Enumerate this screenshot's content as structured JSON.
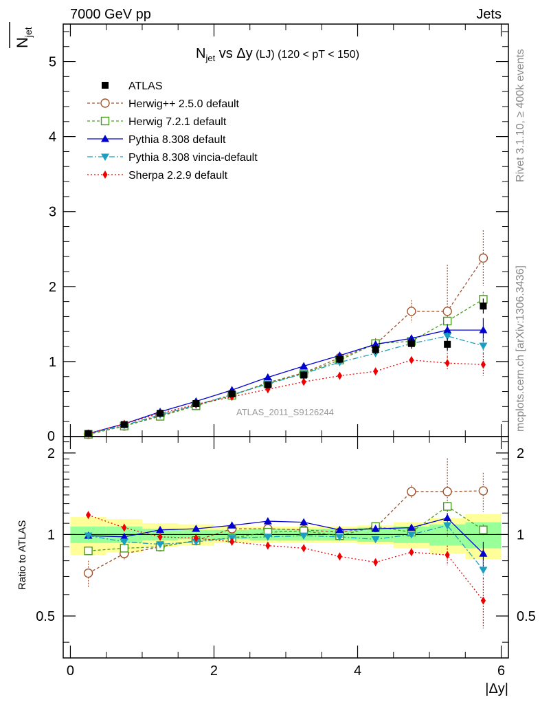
{
  "header": {
    "left": "7000 GeV pp",
    "right": "Jets"
  },
  "side_labels": {
    "rivet": "Rivet 3.1.10, ≥ 400k events",
    "mcplots": "mcplots.cern.ch [arXiv:1306.3436]"
  },
  "watermark": "ATLAS_2011_S9126244",
  "title": {
    "main": "N",
    "sub": "jet",
    "vs": " vs Δy",
    "small": " (LJ)",
    "range": " (120 < pT < 150)"
  },
  "axis": {
    "ylabel_main": "N",
    "ylabel_sub": "jet",
    "ylabel_ratio": "Ratio to ATLAS",
    "xlabel": "|Δy|"
  },
  "chart_data": {
    "type": "scatter",
    "x": [
      0.25,
      0.75,
      1.25,
      1.75,
      2.25,
      2.75,
      3.25,
      3.75,
      4.25,
      4.75,
      5.25,
      5.75
    ],
    "xlim": [
      -0.1,
      6.1
    ],
    "main": {
      "ylim": [
        0,
        5.5
      ],
      "yticks": [
        1,
        2,
        3,
        4,
        5
      ],
      "ytick_labels": [
        "1",
        "2",
        "3",
        "4",
        "5"
      ],
      "ytick_zero_label": "0"
    },
    "ratio": {
      "ylim": [
        0.35,
        2.3
      ],
      "yticks": [
        0.5,
        1,
        2
      ],
      "ytick_labels": [
        "0.5",
        "1",
        "2"
      ]
    },
    "xticks": [
      0,
      2,
      4,
      6
    ],
    "xtick_labels": [
      "0",
      "2",
      "4",
      "6"
    ],
    "data": {
      "name": "ATLAS",
      "values": [
        0.04,
        0.16,
        0.31,
        0.44,
        0.57,
        0.69,
        0.82,
        1.03,
        1.16,
        1.24,
        1.23,
        1.74
      ],
      "errors": [
        0.01,
        0.02,
        0.02,
        0.03,
        0.03,
        0.04,
        0.05,
        0.05,
        0.06,
        0.07,
        0.08,
        0.1
      ]
    },
    "ratio_band": {
      "green": [
        0.07,
        0.07,
        0.05,
        0.04,
        0.04,
        0.05,
        0.05,
        0.05,
        0.06,
        0.07,
        0.09,
        0.11
      ],
      "yellow": [
        0.16,
        0.14,
        0.1,
        0.09,
        0.07,
        0.07,
        0.07,
        0.07,
        0.08,
        0.11,
        0.15,
        0.19
      ]
    },
    "series": [
      {
        "name": "Herwig++ 2.5.0 default",
        "color": "#a0522d",
        "marker": "circle-open",
        "dash": "4,3",
        "values": [
          0.03,
          0.14,
          0.28,
          0.42,
          0.55,
          0.72,
          0.85,
          1.05,
          1.23,
          1.67,
          1.67,
          2.38
        ],
        "errors": [
          0.0,
          0.01,
          0.01,
          0.02,
          0.03,
          0.04,
          0.05,
          0.06,
          0.08,
          0.15,
          0.62,
          0.37
        ],
        "ratio": [
          0.72,
          0.85,
          0.9,
          0.95,
          1.05,
          1.05,
          1.04,
          1.02,
          1.06,
          1.44,
          1.44,
          1.45
        ],
        "ratio_err": [
          0.08,
          0.05,
          0.03,
          0.03,
          0.03,
          0.03,
          0.04,
          0.04,
          0.05,
          0.08,
          0.47,
          0.24
        ]
      },
      {
        "name": "Herwig 7.2.1 default",
        "color": "#4a9a1e",
        "marker": "square-open",
        "dash": "4,3",
        "values": [
          0.03,
          0.14,
          0.27,
          0.41,
          0.55,
          0.71,
          0.84,
          1.02,
          1.24,
          1.27,
          1.54,
          1.83
        ],
        "errors": [
          0.0,
          0.01,
          0.01,
          0.01,
          0.02,
          0.02,
          0.03,
          0.03,
          0.04,
          0.05,
          0.07,
          0.1
        ],
        "ratio": [
          0.87,
          0.89,
          0.9,
          0.95,
          0.97,
          1.02,
          1.03,
          0.99,
          1.07,
          1.02,
          1.27,
          1.04
        ],
        "ratio_err": [
          0.02,
          0.02,
          0.02,
          0.02,
          0.02,
          0.02,
          0.02,
          0.02,
          0.03,
          0.03,
          0.05,
          0.05
        ]
      },
      {
        "name": "Pythia 8.308 default",
        "color": "#0000d0",
        "marker": "triangle-up",
        "dash": "",
        "values": [
          0.04,
          0.17,
          0.33,
          0.47,
          0.62,
          0.79,
          0.94,
          1.08,
          1.23,
          1.31,
          1.42,
          1.42
        ],
        "errors": [
          0.0,
          0.01,
          0.01,
          0.01,
          0.01,
          0.02,
          0.02,
          0.02,
          0.03,
          0.04,
          0.08,
          0.16
        ],
        "ratio": [
          0.99,
          0.98,
          1.04,
          1.05,
          1.08,
          1.12,
          1.11,
          1.04,
          1.05,
          1.06,
          1.15,
          0.85
        ],
        "ratio_err": [
          0.02,
          0.02,
          0.01,
          0.01,
          0.01,
          0.01,
          0.02,
          0.02,
          0.02,
          0.02,
          0.05,
          0.09
        ]
      },
      {
        "name": "Pythia 8.308 vincia-default",
        "color": "#1a9fc0",
        "marker": "triangle-down",
        "dash": "8,3,2,3",
        "values": [
          0.04,
          0.15,
          0.29,
          0.42,
          0.56,
          0.7,
          0.84,
          0.99,
          1.11,
          1.24,
          1.34,
          1.21
        ],
        "errors": [
          0.0,
          0.01,
          0.01,
          0.01,
          0.01,
          0.02,
          0.02,
          0.02,
          0.03,
          0.03,
          0.05,
          0.1
        ],
        "ratio": [
          0.99,
          0.94,
          0.92,
          0.94,
          0.97,
          0.98,
          0.99,
          0.98,
          0.96,
          1.0,
          1.08,
          0.74
        ],
        "ratio_err": [
          0.02,
          0.02,
          0.01,
          0.01,
          0.01,
          0.01,
          0.01,
          0.02,
          0.02,
          0.02,
          0.04,
          0.06
        ]
      },
      {
        "name": "Sherpa 2.2.9 default",
        "color": "#ee0000",
        "marker": "diamond",
        "dash": "2,3",
        "values": [
          0.04,
          0.17,
          0.31,
          0.43,
          0.53,
          0.63,
          0.73,
          0.81,
          0.87,
          1.02,
          0.98,
          0.96
        ],
        "errors": [
          0.0,
          0.01,
          0.01,
          0.01,
          0.01,
          0.02,
          0.02,
          0.02,
          0.03,
          0.04,
          0.08,
          0.15
        ],
        "ratio": [
          1.18,
          1.06,
          0.98,
          0.97,
          0.94,
          0.91,
          0.89,
          0.83,
          0.79,
          0.86,
          0.84,
          0.57
        ],
        "ratio_err": [
          0.02,
          0.02,
          0.01,
          0.01,
          0.01,
          0.01,
          0.01,
          0.01,
          0.02,
          0.03,
          0.07,
          0.12
        ]
      }
    ]
  }
}
